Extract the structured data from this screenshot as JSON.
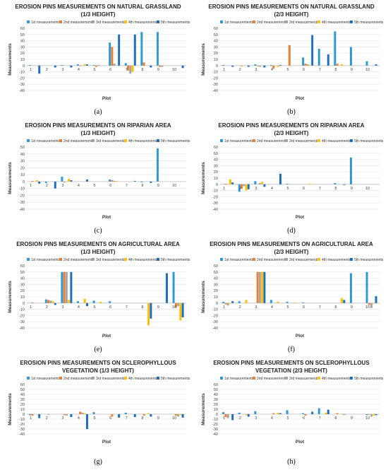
{
  "legend_labels": [
    "1st measurements",
    "2nd measurements",
    "3rd measurements",
    "4th measurements",
    "5th measurements"
  ],
  "colors": [
    "#2e9ad8",
    "#ed7d31",
    "#a5a5a5",
    "#ffc000",
    "#1f6fbf"
  ],
  "captions": [
    "(a)",
    "(b)",
    "(c)",
    "(d)",
    "(e)",
    "(f)",
    "(g)",
    "(h)"
  ],
  "chart_data": [
    {
      "type": "bar",
      "title": "EROSION PINS MEASUREMENTS ON NATURAL GRASSLAND (1/3 HEIGHT)",
      "title_lines": [
        "EROSION PINS MEASUREMENTS ON NATURAL GRASSLAND",
        "(1/3 HEIGHT)"
      ],
      "xlabel": "Plot",
      "ylabel": "Measurements",
      "ylim": [
        -40,
        60
      ],
      "yticks": [
        -40,
        -30,
        -20,
        -10,
        0,
        10,
        20,
        30,
        40,
        50,
        60
      ],
      "categories": [
        "1",
        "2",
        "3",
        "4",
        "5",
        "6",
        "7",
        "8",
        "9",
        "10"
      ],
      "legend_position": "top",
      "series": [
        {
          "name": "1st measurements",
          "values": [
            1,
            0,
            1,
            2,
            1,
            37,
            4,
            54,
            54,
            0
          ]
        },
        {
          "name": "2nd measurements",
          "values": [
            0,
            0,
            0,
            -1,
            -2,
            30,
            -8,
            5,
            -2,
            0
          ]
        },
        {
          "name": "3rd measurements",
          "values": [
            0,
            0,
            0,
            0,
            1,
            3,
            -13,
            0,
            -2,
            0
          ]
        },
        {
          "name": "4th measurements",
          "values": [
            0,
            0,
            0,
            2,
            0,
            0,
            -10,
            0,
            0,
            0
          ]
        },
        {
          "name": "5th measurements",
          "values": [
            -13,
            -3,
            -3,
            2,
            0,
            50,
            50,
            -3,
            0,
            -4
          ]
        }
      ]
    },
    {
      "type": "bar",
      "title": "EROSION PINS MEASUREMENTS ON NATURAL GRASSLAND (2/3 HEIGHT)",
      "title_lines": [
        "EROSION PINS MEASUREMENTS ON NATURAL GRASSLAND",
        "(2/3 HEIGHT)"
      ],
      "xlabel": "Plot",
      "ylabel": "Measurements",
      "ylim": [
        -40,
        60
      ],
      "yticks": [
        -40,
        -30,
        -20,
        -10,
        0,
        10,
        20,
        30,
        40,
        50,
        60
      ],
      "categories": [
        "1",
        "2",
        "3",
        "4",
        "5",
        "6",
        "7",
        "8",
        "9",
        "10"
      ],
      "legend_position": "top",
      "series": [
        {
          "name": "1st measurements",
          "values": [
            1,
            0,
            2,
            1,
            0,
            13,
            27,
            55,
            30,
            7
          ]
        },
        {
          "name": "2nd measurements",
          "values": [
            0,
            -1,
            -1,
            -5,
            33,
            3,
            0,
            3,
            0,
            0
          ]
        },
        {
          "name": "3rd measurements",
          "values": [
            0,
            0,
            -2,
            0,
            0,
            2,
            0,
            0,
            0,
            0
          ]
        },
        {
          "name": "4th measurements",
          "values": [
            0,
            0,
            0,
            -2,
            0,
            1,
            0,
            2,
            0,
            0
          ]
        },
        {
          "name": "5th measurements",
          "values": [
            -2,
            -2,
            -3,
            1,
            0,
            49,
            18,
            0,
            0,
            2
          ]
        }
      ]
    },
    {
      "type": "bar",
      "title": "EROSION PINS MEASUREMENTS ON RIPARIAN AREA (1/3 HEIGHT)",
      "title_lines": [
        "EROSION PINS MEASUREMENTS ON RIPARIAN AREA",
        "(1/3 HEIGHT)"
      ],
      "xlabel": "Plot",
      "ylabel": "Measurements",
      "ylim": [
        -40,
        50
      ],
      "yticks": [
        -40,
        -30,
        -20,
        -10,
        0,
        10,
        20,
        30,
        40,
        50
      ],
      "categories": [
        "1",
        "2",
        "3",
        "4",
        "5",
        "6",
        "7",
        "8",
        "9",
        "10"
      ],
      "legend_position": "top",
      "series": [
        {
          "name": "1st measurements",
          "values": [
            0,
            -2,
            7,
            0,
            0,
            3,
            0,
            -1,
            48,
            0
          ]
        },
        {
          "name": "2nd measurements",
          "values": [
            1,
            0,
            -1,
            0,
            0,
            2,
            0,
            0,
            0,
            0
          ]
        },
        {
          "name": "3rd measurements",
          "values": [
            0,
            0,
            0,
            0,
            0,
            1,
            0,
            0,
            0,
            0
          ]
        },
        {
          "name": "4th measurements",
          "values": [
            2,
            0,
            4,
            0,
            0,
            1,
            0,
            0,
            0,
            0
          ]
        },
        {
          "name": "5th measurements",
          "values": [
            -3,
            -10,
            2,
            3,
            0,
            0,
            1,
            -2,
            0,
            0
          ]
        }
      ]
    },
    {
      "type": "bar",
      "title": "EROSION PINS MEASUREMENTS ON RIPARIAN AREA (2/3 HEIGHT)",
      "title_lines": [
        "EROSION PINS MEASUREMENTS ON RIPARIAN AREA",
        "(2/3 HEIGHT)"
      ],
      "xlabel": "Plot",
      "ylabel": "Measurements",
      "ylim": [
        -40,
        60
      ],
      "yticks": [
        -40,
        -30,
        -20,
        -10,
        0,
        10,
        20,
        30,
        40,
        50,
        60
      ],
      "categories": [
        "1",
        "2",
        "3",
        "4",
        "5",
        "6",
        "7",
        "8",
        "9",
        "10"
      ],
      "legend_position": "top",
      "series": [
        {
          "name": "1st measurements",
          "values": [
            0,
            -12,
            5,
            0,
            1,
            0,
            0,
            2,
            43,
            0
          ]
        },
        {
          "name": "2nd measurements",
          "values": [
            1,
            -7,
            0,
            0,
            0,
            0,
            0,
            0,
            0,
            0
          ]
        },
        {
          "name": "3rd measurements",
          "values": [
            0,
            -3,
            2,
            0,
            0,
            0,
            0,
            0,
            0,
            0
          ]
        },
        {
          "name": "4th measurements",
          "values": [
            8,
            -10,
            4,
            0,
            0,
            1,
            0,
            0,
            0,
            0
          ]
        },
        {
          "name": "5th measurements",
          "values": [
            3,
            -8,
            -4,
            17,
            0,
            0,
            0,
            -1,
            0,
            0
          ]
        }
      ]
    },
    {
      "type": "bar",
      "title": "EROSION PINS MEASUREMENTS ON AGRICULTURAL AREA (1/3 HEIGHT)",
      "title_lines": [
        "EROSION PINS MEASUREMENTS ON AGRICULTURAL  AREA",
        "(1/3 HEIGHT)"
      ],
      "xlabel": "Plot",
      "ylabel": "Measurements",
      "ylim": [
        -40,
        60
      ],
      "yticks": [
        -40,
        -30,
        -20,
        -10,
        0,
        10,
        20,
        30,
        40,
        50,
        60
      ],
      "categories": [
        "1",
        "2",
        "3",
        "4",
        "5",
        "6",
        "7",
        "8",
        "9",
        "10"
      ],
      "legend_position": "top",
      "series": [
        {
          "name": "1st measurements",
          "values": [
            0,
            6,
            50,
            3,
            4,
            3,
            0,
            0,
            0,
            50
          ]
        },
        {
          "name": "2nd measurements",
          "values": [
            1,
            5,
            50,
            0,
            0,
            0,
            0,
            0,
            0,
            -7
          ]
        },
        {
          "name": "3rd measurements",
          "values": [
            0,
            4,
            50,
            0,
            0,
            0,
            0,
            0,
            0,
            -5
          ]
        },
        {
          "name": "4th measurements",
          "values": [
            0,
            3,
            5,
            7,
            2,
            0,
            0,
            -36,
            0,
            -28
          ]
        },
        {
          "name": "5th measurements",
          "values": [
            0,
            -3,
            50,
            -5,
            0,
            0,
            0,
            -25,
            48,
            -23
          ]
        }
      ]
    },
    {
      "type": "bar",
      "title": "EROSION PINS MEASUREMENTS ON AGRICULTURAL AREA (2/3 HEIGHT)",
      "title_lines": [
        "EROSION PINS MEASUREMENTS ON AGRICULTURAL  AREA",
        "(2/3 HEIGHT)"
      ],
      "xlabel": "Plot",
      "ylabel": "Measurements",
      "ylim": [
        -40,
        60
      ],
      "yticks": [
        -40,
        -30,
        -20,
        -10,
        0,
        10,
        20,
        30,
        40,
        50,
        60
      ],
      "categories": [
        "1",
        "2",
        "3",
        "4",
        "5",
        "6",
        "7",
        "8",
        "9",
        "10"
      ],
      "legend_position": "top",
      "series": [
        {
          "name": "1st measurements",
          "values": [
            2,
            3,
            0,
            5,
            2,
            1,
            0,
            0,
            48,
            50
          ]
        },
        {
          "name": "2nd measurements",
          "values": [
            -2,
            0,
            50,
            0,
            0,
            0,
            0,
            0,
            0,
            -3
          ]
        },
        {
          "name": "3rd measurements",
          "values": [
            -4,
            0,
            50,
            0,
            0,
            0,
            0,
            0,
            0,
            -8
          ]
        },
        {
          "name": "4th measurements",
          "values": [
            -1,
            5,
            50,
            2,
            1,
            0,
            0,
            8,
            0,
            -1
          ]
        },
        {
          "name": "5th measurements",
          "values": [
            3,
            0,
            50,
            0,
            0,
            0,
            0,
            5,
            0,
            11
          ]
        }
      ]
    },
    {
      "type": "bar",
      "title": "EROSION PINS MEASUREMENTS ON SCLEROPHYLLOUS VEGETATION (1/3 HEIGHT)",
      "title_lines": [
        "EROSION PINS MEASUREMENTS ON SCLEROPHYLLOUS",
        "VEGETATION (1/3 HEIGHT)"
      ],
      "xlabel": "Plot",
      "ylabel": "Measurements",
      "ylim": [
        -40,
        60
      ],
      "yticks": [
        -40,
        -30,
        -20,
        -10,
        0,
        10,
        20,
        30,
        40,
        50,
        60
      ],
      "categories": [
        "1",
        "2",
        "3",
        "4",
        "5",
        "6",
        "7",
        "8",
        "9",
        "10"
      ],
      "legend_position": "top",
      "series": [
        {
          "name": "1st measurements",
          "values": [
            -2,
            0,
            0,
            0,
            4,
            0,
            3,
            0,
            0,
            0
          ]
        },
        {
          "name": "2nd measurements",
          "values": [
            -3,
            -1,
            -2,
            5,
            0,
            -5,
            0,
            -3,
            0,
            -3
          ]
        },
        {
          "name": "3rd measurements",
          "values": [
            0,
            0,
            -3,
            3,
            0,
            0,
            0,
            0,
            0,
            -5
          ]
        },
        {
          "name": "4th measurements",
          "values": [
            0,
            0,
            0,
            2,
            0,
            0,
            0,
            2,
            0,
            -2
          ]
        },
        {
          "name": "5th measurements",
          "values": [
            -8,
            0,
            -6,
            -30,
            0,
            -7,
            -6,
            -5,
            0,
            -7
          ]
        }
      ]
    },
    {
      "type": "bar",
      "title": "EROSION PINS MEASUREMENTS ON SCLEROPHYLLOUS VEGETATION (2/3 HEIGHT)",
      "title_lines": [
        "EROSION PINS MEASUREMENTS ON SCLEROPHYLLOUS",
        "VEGETATION (2/3 HEIGHT)"
      ],
      "xlabel": "Plot",
      "ylabel": "Measurements",
      "ylim": [
        -40,
        60
      ],
      "yticks": [
        -40,
        -30,
        -20,
        -10,
        0,
        10,
        20,
        30,
        40,
        50,
        60
      ],
      "categories": [
        "1",
        "2",
        "3",
        "4",
        "5",
        "6",
        "7",
        "8",
        "9",
        "10"
      ],
      "legend_position": "top",
      "series": [
        {
          "name": "1st measurements",
          "values": [
            4,
            3,
            6,
            0,
            8,
            2,
            12,
            0,
            0,
            -2
          ]
        },
        {
          "name": "2nd measurements",
          "values": [
            -6,
            0,
            0,
            2,
            0,
            -3,
            0,
            2,
            0,
            -1
          ]
        },
        {
          "name": "3rd measurements",
          "values": [
            -8,
            0,
            0,
            0,
            0,
            0,
            0,
            0,
            0,
            -5
          ]
        },
        {
          "name": "4th measurements",
          "values": [
            0,
            -2,
            0,
            3,
            0,
            0,
            3,
            1,
            0,
            -3
          ]
        },
        {
          "name": "5th measurements",
          "values": [
            -12,
            -5,
            0,
            2,
            0,
            5,
            9,
            -1,
            0,
            -2
          ]
        }
      ]
    }
  ]
}
